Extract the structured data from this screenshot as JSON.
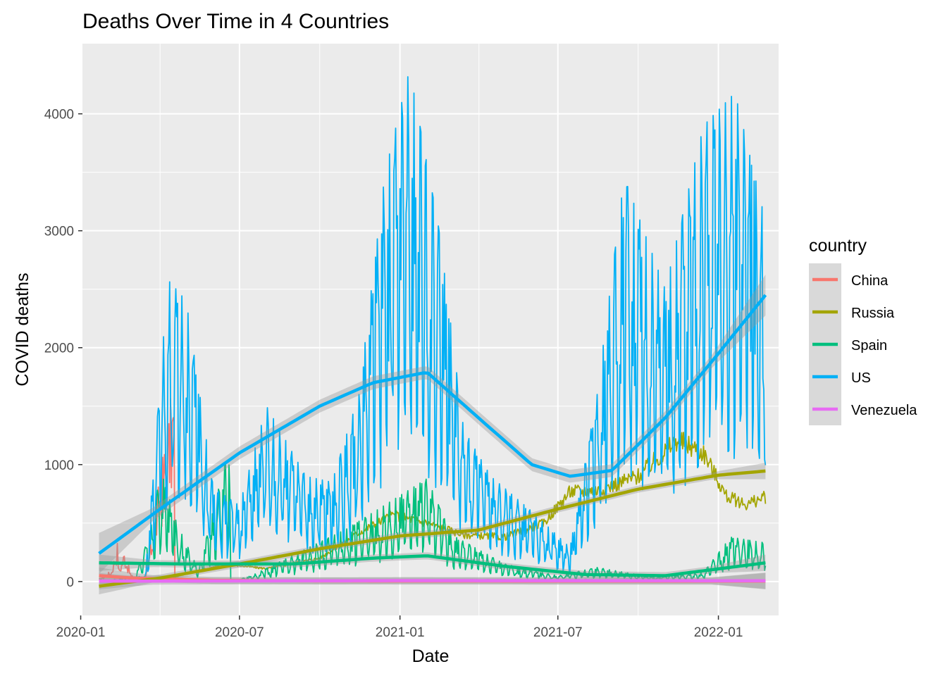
{
  "chart_data": {
    "type": "line",
    "title": "Deaths Over Time in 4 Countries",
    "xlabel": "Date",
    "ylabel": "COVID deaths",
    "x_axis": {
      "type": "date",
      "range": [
        "2020-01-03",
        "2022-03-11"
      ],
      "ticks": [
        "2020-01-01",
        "2020-07-01",
        "2021-01-01",
        "2021-07-01",
        "2022-01-01"
      ],
      "tick_labels": [
        "2020-01",
        "2020-07",
        "2021-01",
        "2021-07",
        "2022-01"
      ]
    },
    "y_axis": {
      "range": [
        -290,
        4600
      ],
      "ticks": [
        0,
        1000,
        2000,
        3000,
        4000
      ],
      "tick_labels": [
        "0",
        "1000",
        "2000",
        "3000",
        "4000"
      ]
    },
    "grid": true,
    "legend": {
      "title": "country",
      "position": "right",
      "entries": [
        "China",
        "Russia",
        "Spain",
        "US",
        "Venezuela"
      ]
    },
    "series": [
      {
        "name": "China",
        "color": "#F8766D",
        "x_start": "2020-01-22",
        "x_end": "2022-02-24",
        "raw_points": [
          [
            "2020-01-22",
            15
          ],
          [
            "2020-02-05",
            70
          ],
          [
            "2020-02-12",
            250
          ],
          [
            "2020-02-14",
            80
          ],
          [
            "2020-02-20",
            200
          ],
          [
            "2020-02-28",
            40
          ],
          [
            "2020-03-15",
            10
          ],
          [
            "2020-04-17",
            1290
          ],
          [
            "2020-04-18",
            0
          ],
          [
            "2020-06-01",
            2
          ],
          [
            "2022-02-24",
            2
          ]
        ],
        "smooth": [
          [
            "2020-01-22",
            50
          ],
          [
            "2020-03-01",
            30
          ],
          [
            "2020-06-01",
            10
          ],
          [
            "2020-10-01",
            5
          ],
          [
            "2022-02-24",
            3
          ]
        ]
      },
      {
        "name": "Russia",
        "color": "#A3A500",
        "x_start": "2020-01-22",
        "x_end": "2022-02-24",
        "raw_points": [
          [
            "2020-01-22",
            0
          ],
          [
            "2020-04-01",
            5
          ],
          [
            "2020-05-15",
            90
          ],
          [
            "2020-06-15",
            150
          ],
          [
            "2020-08-01",
            110
          ],
          [
            "2020-10-01",
            200
          ],
          [
            "2020-11-15",
            420
          ],
          [
            "2020-12-24",
            570
          ],
          [
            "2021-02-01",
            500
          ],
          [
            "2021-03-15",
            400
          ],
          [
            "2021-05-01",
            380
          ],
          [
            "2021-06-15",
            500
          ],
          [
            "2021-07-15",
            770
          ],
          [
            "2021-08-15",
            780
          ],
          [
            "2021-10-01",
            900
          ],
          [
            "2021-11-15",
            1210
          ],
          [
            "2021-12-15",
            1100
          ],
          [
            "2022-01-10",
            730
          ],
          [
            "2022-02-01",
            660
          ],
          [
            "2022-02-24",
            720
          ]
        ],
        "smooth": [
          [
            "2020-01-22",
            -40
          ],
          [
            "2020-04-01",
            30
          ],
          [
            "2020-07-01",
            150
          ],
          [
            "2020-10-01",
            280
          ],
          [
            "2021-01-01",
            390
          ],
          [
            "2021-04-01",
            440
          ],
          [
            "2021-07-01",
            620
          ],
          [
            "2021-10-01",
            790
          ],
          [
            "2022-01-01",
            910
          ],
          [
            "2022-02-24",
            945
          ]
        ]
      },
      {
        "name": "Spain",
        "color": "#00BF7D",
        "x_start": "2020-01-22",
        "x_end": "2022-02-24",
        "raw_points": [
          [
            "2020-01-22",
            0
          ],
          [
            "2020-03-01",
            0
          ],
          [
            "2020-03-20",
            400
          ],
          [
            "2020-04-02",
            950
          ],
          [
            "2020-04-20",
            500
          ],
          [
            "2020-05-15",
            100
          ],
          [
            "2020-06-20",
            1180
          ],
          [
            "2020-06-21",
            0
          ],
          [
            "2020-07-15",
            50
          ],
          [
            "2020-11-01",
            450
          ],
          [
            "2021-01-15",
            800
          ],
          [
            "2021-02-01",
            880
          ],
          [
            "2021-03-01",
            400
          ],
          [
            "2021-05-01",
            150
          ],
          [
            "2021-07-01",
            50
          ],
          [
            "2021-08-15",
            120
          ],
          [
            "2021-10-15",
            40
          ],
          [
            "2021-12-15",
            80
          ],
          [
            "2022-01-15",
            380
          ],
          [
            "2022-02-24",
            330
          ]
        ],
        "smooth": [
          [
            "2020-01-22",
            160
          ],
          [
            "2020-05-01",
            150
          ],
          [
            "2020-09-01",
            150
          ],
          [
            "2020-12-01",
            200
          ],
          [
            "2021-02-01",
            220
          ],
          [
            "2021-05-01",
            130
          ],
          [
            "2021-08-01",
            60
          ],
          [
            "2021-11-01",
            50
          ],
          [
            "2022-02-24",
            160
          ]
        ]
      },
      {
        "name": "US",
        "color": "#00B0F6",
        "x_start": "2020-01-22",
        "x_end": "2022-02-24",
        "raw_points": [
          [
            "2020-01-22",
            0
          ],
          [
            "2020-03-15",
            50
          ],
          [
            "2020-04-10",
            2580
          ],
          [
            "2020-05-01",
            2400
          ],
          [
            "2020-06-01",
            800
          ],
          [
            "2020-07-01",
            650
          ],
          [
            "2020-08-01",
            1500
          ],
          [
            "2020-09-15",
            900
          ],
          [
            "2020-10-15",
            850
          ],
          [
            "2020-11-15",
            1600
          ],
          [
            "2020-12-15",
            3500
          ],
          [
            "2021-01-12",
            4380
          ],
          [
            "2021-02-15",
            3000
          ],
          [
            "2021-03-15",
            1300
          ],
          [
            "2021-04-15",
            900
          ],
          [
            "2021-06-01",
            600
          ],
          [
            "2021-07-15",
            290
          ],
          [
            "2021-08-15",
            1600
          ],
          [
            "2021-09-15",
            3460
          ],
          [
            "2021-11-01",
            2500
          ],
          [
            "2021-12-15",
            3900
          ],
          [
            "2022-01-20",
            4180
          ],
          [
            "2022-02-24",
            3080
          ]
        ],
        "smooth": [
          [
            "2020-01-22",
            240
          ],
          [
            "2020-04-01",
            620
          ],
          [
            "2020-07-01",
            1100
          ],
          [
            "2020-10-01",
            1500
          ],
          [
            "2020-12-01",
            1700
          ],
          [
            "2021-02-01",
            1790
          ],
          [
            "2021-04-01",
            1400
          ],
          [
            "2021-06-01",
            1000
          ],
          [
            "2021-07-15",
            900
          ],
          [
            "2021-09-01",
            950
          ],
          [
            "2021-11-01",
            1400
          ],
          [
            "2022-01-01",
            1950
          ],
          [
            "2022-02-24",
            2450
          ]
        ]
      },
      {
        "name": "Venezuela",
        "color": "#E76BF3",
        "x_start": "2020-01-22",
        "x_end": "2022-02-24",
        "raw_points": [
          [
            "2020-01-22",
            0
          ],
          [
            "2020-08-01",
            5
          ],
          [
            "2021-01-01",
            10
          ],
          [
            "2021-07-01",
            15
          ],
          [
            "2022-02-24",
            8
          ]
        ],
        "smooth": [
          [
            "2020-01-22",
            3
          ],
          [
            "2021-01-01",
            8
          ],
          [
            "2022-02-24",
            7
          ]
        ]
      }
    ]
  }
}
